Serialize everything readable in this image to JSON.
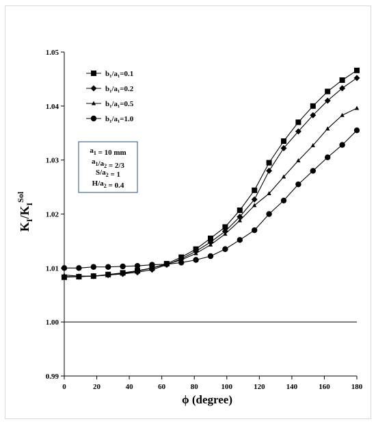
{
  "chart_data": {
    "type": "line",
    "xlabel": "ϕ (degree)",
    "ylabel": "K_I/K_I^Sol",
    "xlim": [
      0,
      180
    ],
    "ylim": [
      0.99,
      1.05
    ],
    "xticks": [
      "0",
      "20",
      "40",
      "60",
      "80",
      "100",
      "120",
      "140",
      "160",
      "180"
    ],
    "yticks": [
      "0.99",
      "1.00",
      "1.01",
      "1.02",
      "1.03",
      "1.04",
      "1.05"
    ],
    "grid": false,
    "legend_position": "top-left",
    "reference_line": 1.0,
    "parameters": [
      "a1 = 10 mm",
      "a1/a2 = 2/3",
      "S/a2 = 1",
      "H/a2 = 0.4"
    ],
    "x": [
      0,
      9,
      18,
      27,
      36,
      45,
      54,
      63,
      72,
      81,
      90,
      99,
      108,
      117,
      126,
      135,
      144,
      153,
      162,
      171,
      180
    ],
    "series": [
      {
        "name": "b₁/a₁=0.1",
        "marker": "square",
        "values": [
          1.0083,
          1.0084,
          1.0085,
          1.0088,
          1.0091,
          1.0095,
          1.01,
          1.0108,
          1.012,
          1.0135,
          1.0155,
          1.0176,
          1.0207,
          1.0244,
          1.0295,
          1.0335,
          1.037,
          1.04,
          1.0427,
          1.0448,
          1.0466
        ]
      },
      {
        "name": "b₁/a₁=0.2",
        "marker": "diamond",
        "values": [
          1.0084,
          1.0084,
          1.0085,
          1.0087,
          1.0089,
          1.0092,
          1.0097,
          1.0106,
          1.0117,
          1.0131,
          1.0148,
          1.0168,
          1.0195,
          1.0227,
          1.028,
          1.0322,
          1.0353,
          1.0383,
          1.041,
          1.0433,
          1.0452
        ]
      },
      {
        "name": "b₁/a₁=0.5",
        "marker": "triangle",
        "values": [
          1.0087,
          1.0085,
          1.0085,
          1.0087,
          1.009,
          1.0094,
          1.01,
          1.0107,
          1.0115,
          1.0127,
          1.0143,
          1.0163,
          1.0188,
          1.0216,
          1.0238,
          1.0269,
          1.0299,
          1.0327,
          1.0358,
          1.0383,
          1.0396
        ]
      },
      {
        "name": "b₁/a₁=1.0",
        "marker": "circle",
        "values": [
          1.01,
          1.01,
          1.0102,
          1.0102,
          1.0103,
          1.0104,
          1.0106,
          1.0107,
          1.011,
          1.0115,
          1.0122,
          1.0135,
          1.0152,
          1.017,
          1.02,
          1.0225,
          1.0255,
          1.028,
          1.0305,
          1.0328,
          1.0355
        ]
      }
    ]
  }
}
